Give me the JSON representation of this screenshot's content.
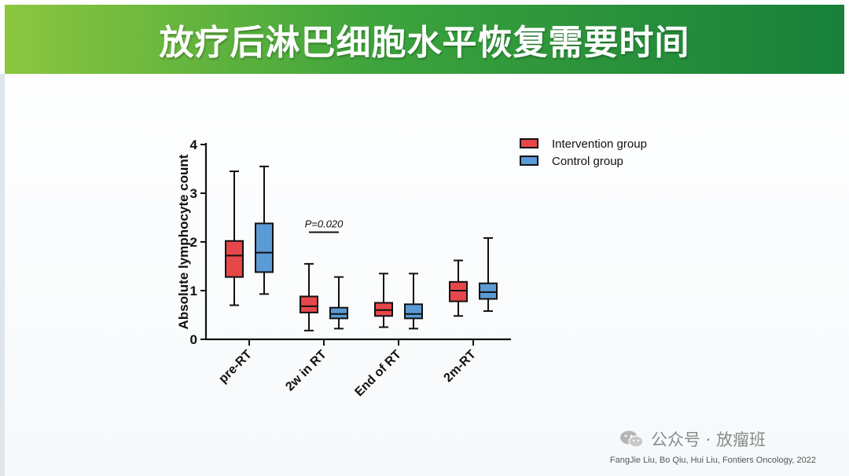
{
  "slide": {
    "title": "放疗后淋巴细胞水平恢复需要时间",
    "citation": "FangJie Liu, Bo Qiu, Hui Liu, Fontiers Oncology, 2022",
    "watermark": "公众号 · 放瘤班"
  },
  "colors": {
    "title_bar_start": "#8cc63f",
    "title_bar_end": "#17803a",
    "intervention": "#e8474a",
    "control": "#5b9bd5"
  },
  "chart_data": {
    "type": "box",
    "ylabel": "Absolute lymphocyte count",
    "xlabel": "",
    "ylim": [
      0,
      4
    ],
    "yticks": [
      0,
      1,
      2,
      3,
      4
    ],
    "categories": [
      "pre-RT",
      "2w in RT",
      "End of RT",
      "2m-RT"
    ],
    "legend_position": "top-right",
    "series": [
      {
        "name": "Intervention group",
        "color": "#e8474a",
        "boxes": [
          {
            "min": 0.7,
            "q1": 1.28,
            "median": 1.72,
            "q3": 2.02,
            "max": 3.45
          },
          {
            "min": 0.18,
            "q1": 0.55,
            "median": 0.68,
            "q3": 0.88,
            "max": 1.55
          },
          {
            "min": 0.25,
            "q1": 0.48,
            "median": 0.6,
            "q3": 0.75,
            "max": 1.35
          },
          {
            "min": 0.48,
            "q1": 0.78,
            "median": 1.0,
            "q3": 1.18,
            "max": 1.62
          }
        ]
      },
      {
        "name": "Control group",
        "color": "#5b9bd5",
        "boxes": [
          {
            "min": 0.93,
            "q1": 1.38,
            "median": 1.78,
            "q3": 2.38,
            "max": 3.55
          },
          {
            "min": 0.22,
            "q1": 0.43,
            "median": 0.52,
            "q3": 0.65,
            "max": 1.28
          },
          {
            "min": 0.22,
            "q1": 0.43,
            "median": 0.52,
            "q3": 0.72,
            "max": 1.35
          },
          {
            "min": 0.58,
            "q1": 0.83,
            "median": 0.97,
            "q3": 1.15,
            "max": 2.08
          }
        ]
      }
    ],
    "annotations": [
      {
        "text": "P=0.020",
        "category": "2w in RT",
        "y": 2.2
      }
    ]
  }
}
